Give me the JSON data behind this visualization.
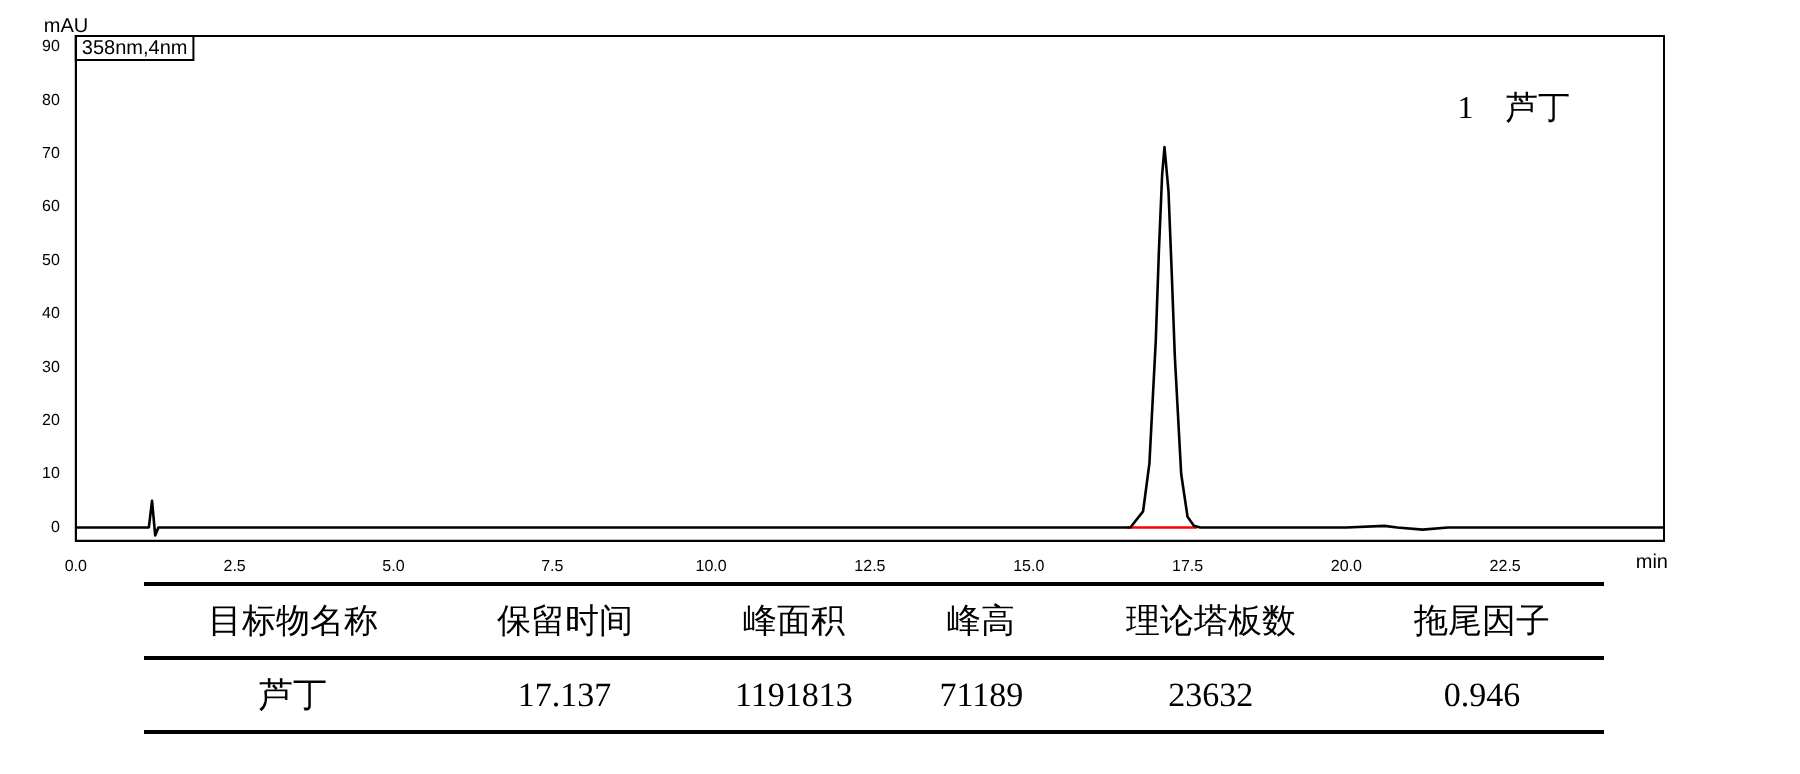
{
  "chart_data": {
    "type": "line",
    "xlabel": "min",
    "ylabel": "mAU",
    "annotations": [
      "358nm,4nm",
      "1　芦丁",
      "目标物名称",
      "保留时间",
      "峰面积",
      "峰高",
      "理论塔板数",
      "拖尾因子",
      "芦丁",
      "17.137",
      "1191813",
      "71189",
      "23632",
      "0.946"
    ],
    "xlim": [
      0,
      25
    ],
    "ylim": [
      -2.5,
      92
    ],
    "xticks": [
      {
        "value": 0,
        "label": "0.0"
      },
      {
        "value": 2.5,
        "label": "2.5"
      },
      {
        "value": 5,
        "label": "5.0"
      },
      {
        "value": 7.5,
        "label": "7.5"
      },
      {
        "value": 10,
        "label": "10.0"
      },
      {
        "value": 12.5,
        "label": "12.5"
      },
      {
        "value": 15,
        "label": "15.0"
      },
      {
        "value": 17.5,
        "label": "17.5"
      },
      {
        "value": 20,
        "label": "20.0"
      },
      {
        "value": 22.5,
        "label": "22.5"
      }
    ],
    "yticks": [
      0,
      10,
      20,
      30,
      40,
      50,
      60,
      70,
      80,
      90
    ],
    "grid": false,
    "legend": false,
    "marker": "none",
    "line_style": "solid",
    "series": [
      {
        "color": "#000000",
        "x": [
          0,
          1.15,
          1.2,
          1.25,
          1.3,
          1.4,
          10,
          16.6,
          16.8,
          16.9,
          17.0,
          17.05,
          17.1,
          17.137,
          17.2,
          17.25,
          17.3,
          17.4,
          17.5,
          17.6,
          17.7,
          20,
          20.6,
          20.8,
          21.2,
          21.6,
          25
        ],
        "values": [
          0,
          0,
          5,
          -1.5,
          0,
          0,
          0,
          0,
          3,
          12,
          35,
          52,
          66,
          71.2,
          63,
          48,
          32,
          10,
          2,
          0.3,
          0,
          0,
          0.3,
          0,
          -0.4,
          0,
          0
        ]
      },
      {
        "color": "#ff0000",
        "x": [
          16.55,
          17.65
        ],
        "values": [
          0,
          0
        ]
      }
    ]
  }
}
